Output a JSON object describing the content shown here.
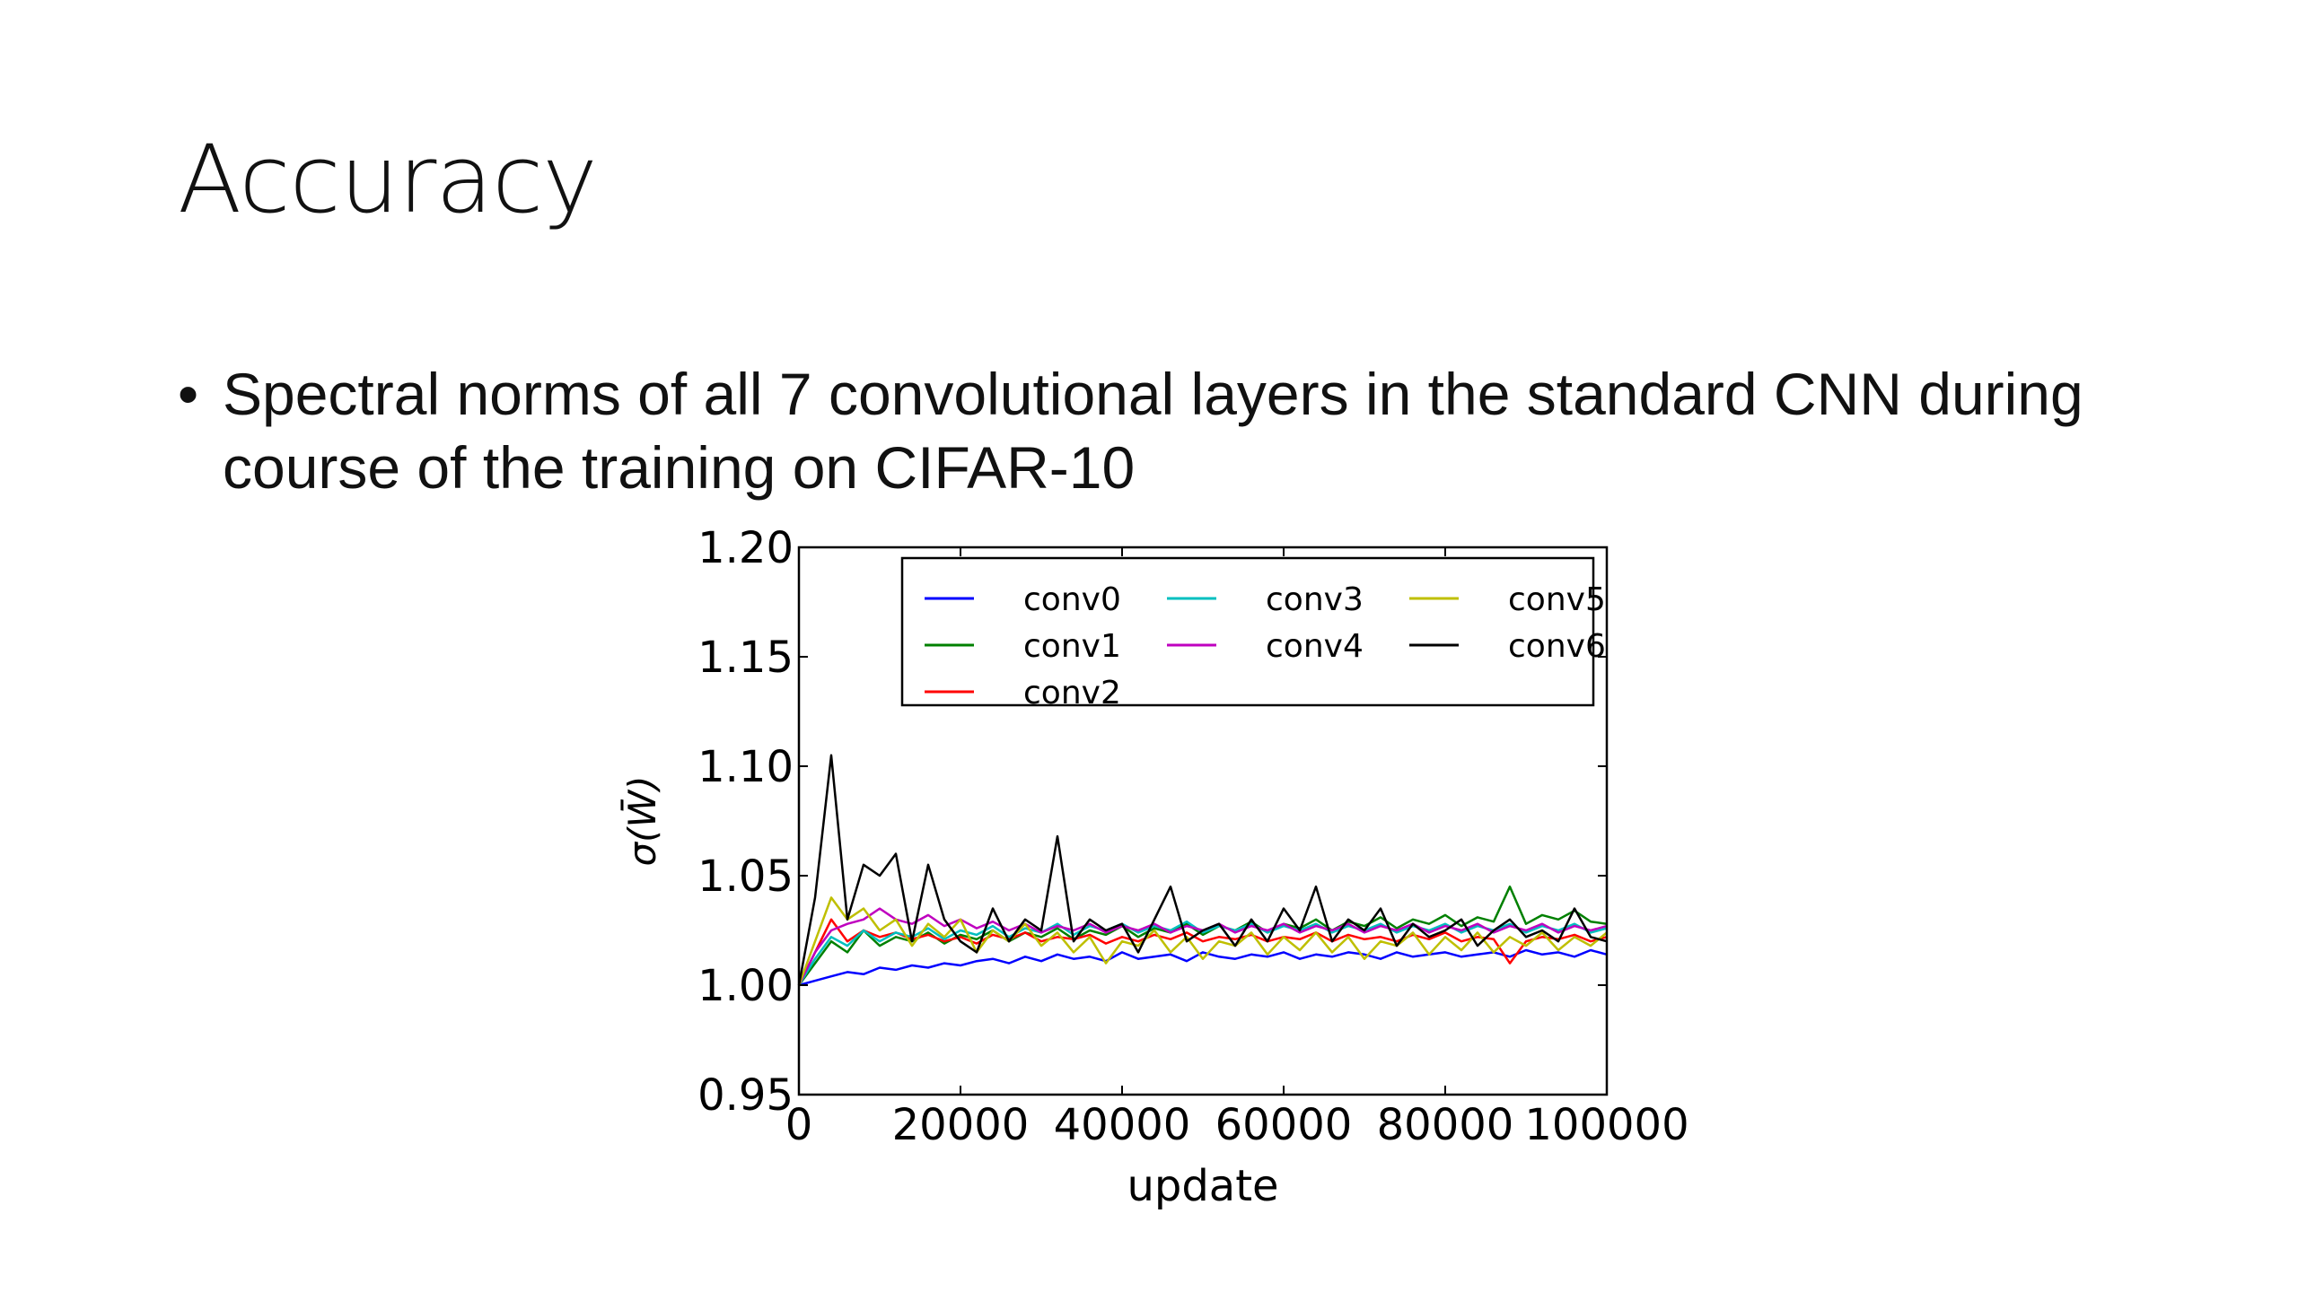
{
  "slide": {
    "title": "Accuracy",
    "bullet_glyph": "•",
    "bullet_text": "Spectral norms of all 7 convolutional layers in the standard CNN during course of the training on CIFAR-10"
  },
  "chart_data": {
    "type": "line",
    "xlabel": "update",
    "ylabel": "σ(W̄)",
    "xlim": [
      0,
      100000
    ],
    "ylim": [
      0.95,
      1.2
    ],
    "xticks": [
      0,
      20000,
      40000,
      60000,
      80000,
      100000
    ],
    "xtick_labels": [
      "0",
      "20000",
      "40000",
      "60000",
      "80000",
      "100000"
    ],
    "yticks": [
      0.95,
      1.0,
      1.05,
      1.1,
      1.15,
      1.2
    ],
    "ytick_labels": [
      "0.95",
      "1.00",
      "1.05",
      "1.10",
      "1.15",
      "1.20"
    ],
    "grid": false,
    "legend_position": "top-right",
    "x": [
      0,
      2000,
      4000,
      6000,
      8000,
      10000,
      12000,
      14000,
      16000,
      18000,
      20000,
      22000,
      24000,
      26000,
      28000,
      30000,
      32000,
      34000,
      36000,
      38000,
      40000,
      42000,
      44000,
      46000,
      48000,
      50000,
      52000,
      54000,
      56000,
      58000,
      60000,
      62000,
      64000,
      66000,
      68000,
      70000,
      72000,
      74000,
      76000,
      78000,
      80000,
      82000,
      84000,
      86000,
      88000,
      90000,
      92000,
      94000,
      96000,
      98000,
      100000
    ],
    "series": [
      {
        "name": "conv0",
        "color": "#0000ff",
        "values": [
          1.0,
          1.002,
          1.004,
          1.006,
          1.005,
          1.008,
          1.007,
          1.009,
          1.008,
          1.01,
          1.009,
          1.011,
          1.012,
          1.01,
          1.013,
          1.011,
          1.014,
          1.012,
          1.013,
          1.011,
          1.015,
          1.012,
          1.013,
          1.014,
          1.011,
          1.015,
          1.013,
          1.012,
          1.014,
          1.013,
          1.015,
          1.012,
          1.014,
          1.013,
          1.015,
          1.014,
          1.012,
          1.015,
          1.013,
          1.014,
          1.015,
          1.013,
          1.014,
          1.015,
          1.013,
          1.016,
          1.014,
          1.015,
          1.013,
          1.016,
          1.014
        ]
      },
      {
        "name": "conv1",
        "color": "#008000",
        "values": [
          1.0,
          1.01,
          1.02,
          1.015,
          1.025,
          1.018,
          1.022,
          1.02,
          1.024,
          1.019,
          1.023,
          1.021,
          1.025,
          1.02,
          1.024,
          1.022,
          1.026,
          1.021,
          1.025,
          1.023,
          1.027,
          1.022,
          1.026,
          1.024,
          1.028,
          1.023,
          1.027,
          1.025,
          1.029,
          1.024,
          1.028,
          1.026,
          1.03,
          1.025,
          1.029,
          1.027,
          1.031,
          1.026,
          1.03,
          1.028,
          1.032,
          1.027,
          1.031,
          1.029,
          1.045,
          1.028,
          1.032,
          1.03,
          1.034,
          1.029,
          1.028
        ]
      },
      {
        "name": "conv2",
        "color": "#ff0000",
        "values": [
          1.0,
          1.015,
          1.03,
          1.02,
          1.025,
          1.022,
          1.024,
          1.021,
          1.023,
          1.02,
          1.022,
          1.019,
          1.023,
          1.021,
          1.024,
          1.02,
          1.022,
          1.021,
          1.023,
          1.019,
          1.022,
          1.02,
          1.023,
          1.021,
          1.024,
          1.02,
          1.022,
          1.021,
          1.023,
          1.02,
          1.022,
          1.021,
          1.024,
          1.02,
          1.023,
          1.021,
          1.022,
          1.02,
          1.023,
          1.021,
          1.024,
          1.02,
          1.022,
          1.021,
          1.01,
          1.02,
          1.022,
          1.021,
          1.023,
          1.02,
          1.022
        ]
      },
      {
        "name": "conv3",
        "color": "#00bfbf",
        "values": [
          1.0,
          1.012,
          1.022,
          1.018,
          1.025,
          1.02,
          1.024,
          1.022,
          1.026,
          1.021,
          1.025,
          1.023,
          1.027,
          1.022,
          1.026,
          1.024,
          1.028,
          1.023,
          1.027,
          1.025,
          1.028,
          1.024,
          1.027,
          1.025,
          1.029,
          1.024,
          1.027,
          1.025,
          1.028,
          1.024,
          1.027,
          1.025,
          1.028,
          1.024,
          1.027,
          1.025,
          1.028,
          1.024,
          1.027,
          1.025,
          1.028,
          1.024,
          1.027,
          1.025,
          1.028,
          1.024,
          1.027,
          1.025,
          1.028,
          1.024,
          1.026
        ]
      },
      {
        "name": "conv4",
        "color": "#bf00bf",
        "values": [
          1.0,
          1.015,
          1.025,
          1.028,
          1.03,
          1.035,
          1.03,
          1.028,
          1.032,
          1.027,
          1.03,
          1.026,
          1.029,
          1.025,
          1.028,
          1.024,
          1.027,
          1.025,
          1.028,
          1.024,
          1.027,
          1.025,
          1.028,
          1.024,
          1.027,
          1.025,
          1.028,
          1.024,
          1.027,
          1.025,
          1.028,
          1.024,
          1.027,
          1.025,
          1.028,
          1.024,
          1.027,
          1.025,
          1.028,
          1.024,
          1.027,
          1.025,
          1.028,
          1.024,
          1.027,
          1.025,
          1.028,
          1.024,
          1.027,
          1.025,
          1.027
        ]
      },
      {
        "name": "conv5",
        "color": "#bfbf00",
        "values": [
          1.0,
          1.02,
          1.04,
          1.03,
          1.035,
          1.025,
          1.03,
          1.018,
          1.028,
          1.022,
          1.03,
          1.015,
          1.025,
          1.02,
          1.028,
          1.018,
          1.024,
          1.015,
          1.022,
          1.01,
          1.02,
          1.018,
          1.025,
          1.015,
          1.022,
          1.012,
          1.02,
          1.018,
          1.024,
          1.014,
          1.022,
          1.016,
          1.024,
          1.015,
          1.022,
          1.012,
          1.02,
          1.018,
          1.024,
          1.014,
          1.022,
          1.016,
          1.024,
          1.015,
          1.022,
          1.018,
          1.024,
          1.016,
          1.022,
          1.018,
          1.024
        ]
      },
      {
        "name": "conv6",
        "color": "#000000",
        "values": [
          1.0,
          1.04,
          1.105,
          1.03,
          1.055,
          1.05,
          1.06,
          1.02,
          1.055,
          1.03,
          1.02,
          1.015,
          1.035,
          1.02,
          1.03,
          1.025,
          1.068,
          1.02,
          1.03,
          1.025,
          1.028,
          1.015,
          1.03,
          1.045,
          1.02,
          1.025,
          1.028,
          1.018,
          1.03,
          1.02,
          1.035,
          1.025,
          1.045,
          1.02,
          1.03,
          1.025,
          1.035,
          1.018,
          1.028,
          1.022,
          1.025,
          1.03,
          1.018,
          1.025,
          1.03,
          1.022,
          1.025,
          1.02,
          1.035,
          1.022,
          1.02
        ]
      }
    ]
  }
}
